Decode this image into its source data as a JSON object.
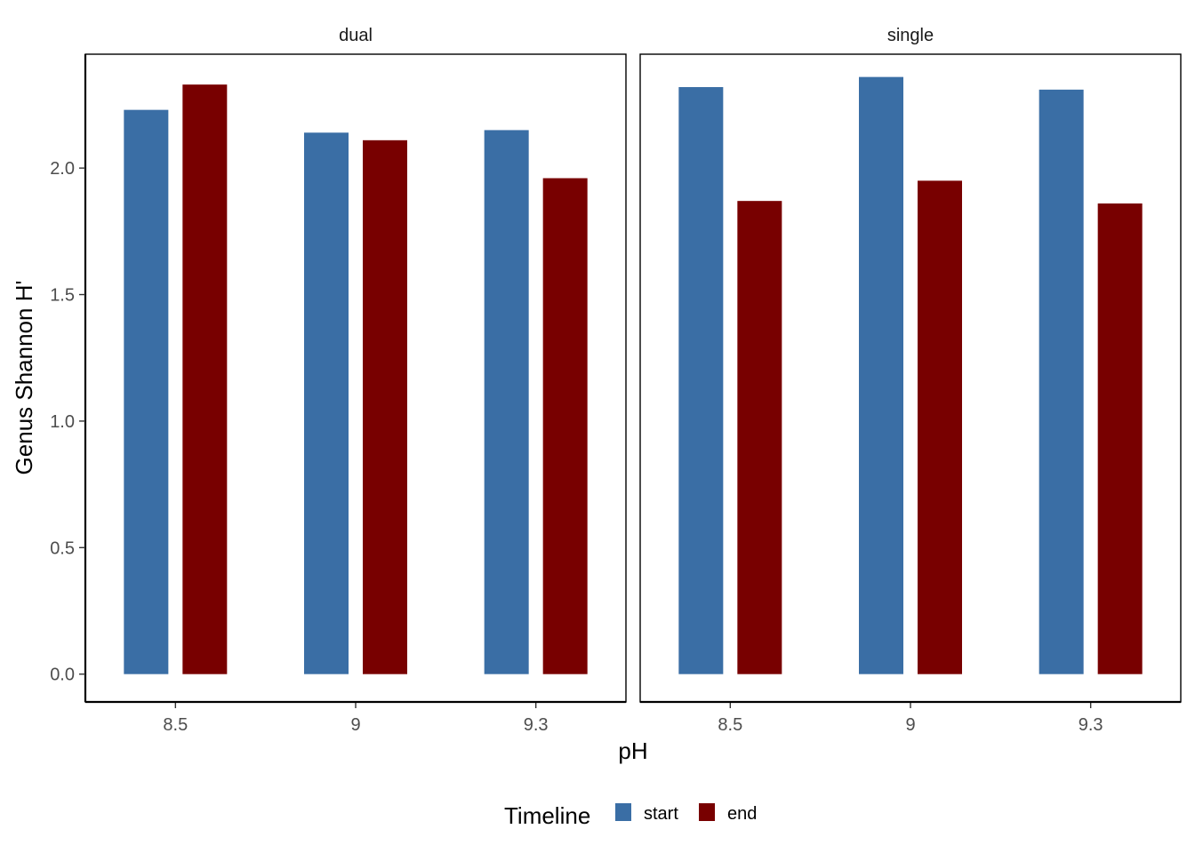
{
  "chart_data": {
    "type": "bar",
    "facet_variable": "type",
    "facets": [
      {
        "label": "dual",
        "categories": [
          "8.5",
          "9",
          "9.3"
        ],
        "series": [
          {
            "name": "start",
            "values": [
              2.23,
              2.14,
              2.15
            ]
          },
          {
            "name": "end",
            "values": [
              2.33,
              2.11,
              1.96
            ]
          }
        ]
      },
      {
        "label": "single",
        "categories": [
          "8.5",
          "9",
          "9.3"
        ],
        "series": [
          {
            "name": "start",
            "values": [
              2.32,
              2.36,
              2.31
            ]
          },
          {
            "name": "end",
            "values": [
              1.87,
              1.95,
              1.86
            ]
          }
        ]
      }
    ],
    "xlabel": "pH",
    "ylabel": "Genus Shannon H'",
    "ylim": [
      -0.11,
      2.45
    ],
    "yticks": [
      0.0,
      0.5,
      1.0,
      1.5,
      2.0
    ],
    "ytick_labels": [
      "0.0",
      "0.5",
      "1.0",
      "1.5",
      "2.0"
    ],
    "grid": false,
    "legend": {
      "title": "Timeline",
      "position": "bottom",
      "entries": [
        {
          "name": "start",
          "color": "#3A6EA5"
        },
        {
          "name": "end",
          "color": "#780000"
        }
      ]
    }
  }
}
